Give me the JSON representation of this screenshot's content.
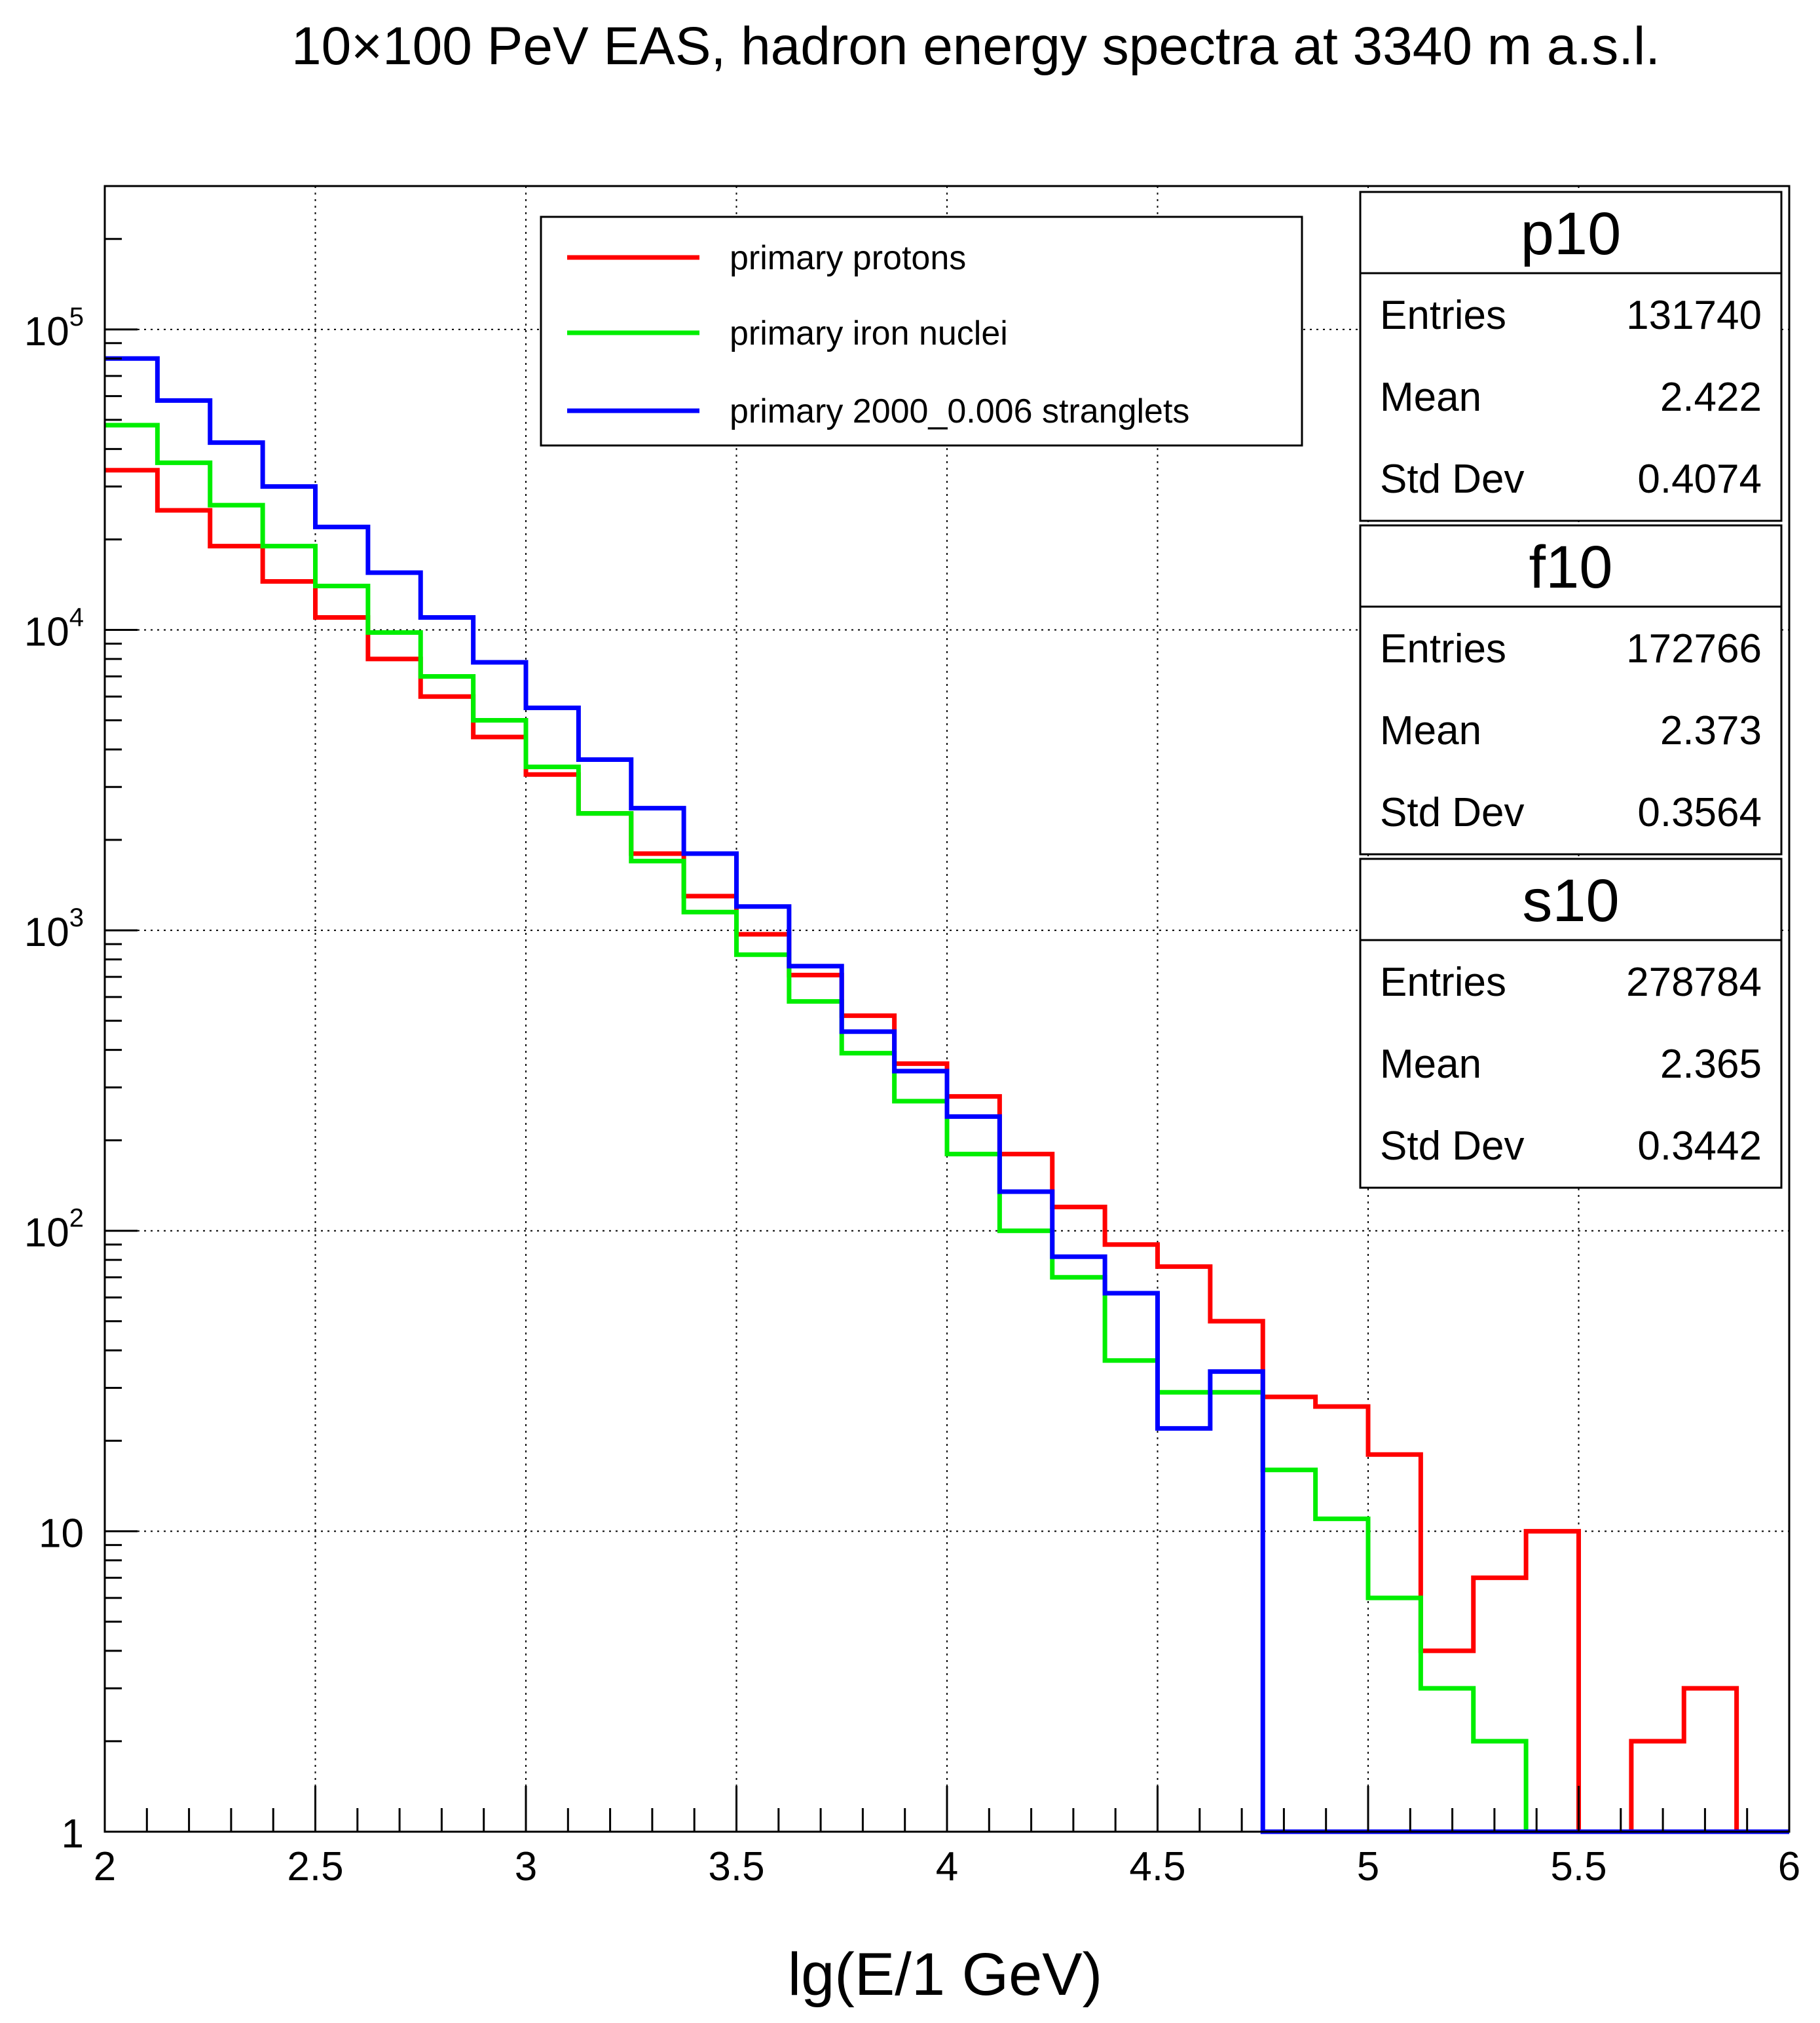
{
  "chart_data": {
    "type": "histogram-step",
    "title": "10×100 PeV EAS, hadron energy spectra at 3340 m a.s.l.",
    "xlabel": "lg(E/1 GeV)",
    "ylabel": "",
    "xlim": [
      2,
      6
    ],
    "ylim": [
      1,
      300000
    ],
    "yscale": "log",
    "grid": true,
    "x_ticks": [
      "2",
      "2.5",
      "3",
      "3.5",
      "4",
      "4.5",
      "5",
      "5.5",
      "6"
    ],
    "y_ticks": [
      {
        "value": 1,
        "base": "1",
        "exp": ""
      },
      {
        "value": 10,
        "base": "10",
        "exp": ""
      },
      {
        "value": 100,
        "base": "10",
        "exp": "2"
      },
      {
        "value": 1000,
        "base": "10",
        "exp": "3"
      },
      {
        "value": 10000,
        "base": "10",
        "exp": "4"
      },
      {
        "value": 100000,
        "base": "10",
        "exp": "5"
      }
    ],
    "bin_edges": [
      2.0,
      2.125,
      2.25,
      2.375,
      2.5,
      2.625,
      2.75,
      2.875,
      3.0,
      3.125,
      3.25,
      3.375,
      3.5,
      3.625,
      3.75,
      3.875,
      4.0,
      4.125,
      4.25,
      4.375,
      4.5,
      4.625,
      4.75,
      4.875,
      5.0,
      5.125,
      5.25,
      5.375,
      5.5,
      5.625,
      5.75,
      5.875,
      6.0
    ],
    "series": [
      {
        "name": "primary protons",
        "color": "#ff0000",
        "values": [
          34000,
          25000,
          19000,
          14500,
          11000,
          8000,
          6000,
          4400,
          3300,
          2450,
          1800,
          1300,
          970,
          710,
          520,
          360,
          280,
          180,
          120,
          90,
          76,
          50,
          28,
          26,
          18,
          4,
          7,
          10,
          0,
          2,
          3,
          0
        ]
      },
      {
        "name": "primary iron nuclei",
        "color": "#00ee00",
        "values": [
          48000,
          36000,
          26000,
          19000,
          14000,
          9800,
          7000,
          5000,
          3500,
          2450,
          1700,
          1150,
          830,
          580,
          390,
          270,
          180,
          100,
          70,
          37,
          29,
          29,
          16,
          11,
          6,
          3,
          2,
          0,
          0,
          0,
          0,
          0
        ]
      },
      {
        "name": "primary 2000_0.006 stranglets",
        "color": "#0000ff",
        "values": [
          80000,
          58000,
          42000,
          30000,
          22000,
          15500,
          11000,
          7800,
          5500,
          3700,
          2550,
          1800,
          1200,
          760,
          460,
          340,
          240,
          135,
          82,
          62,
          22,
          34,
          0,
          0,
          0,
          0,
          0,
          0,
          0,
          0,
          0,
          0
        ]
      }
    ],
    "stats": [
      {
        "name": "p10",
        "entries_label": "Entries",
        "entries": "131740",
        "mean_label": "Mean",
        "mean": "2.422",
        "std_label": "Std Dev",
        "std": "0.4074"
      },
      {
        "name": "f10",
        "entries_label": "Entries",
        "entries": "172766",
        "mean_label": "Mean",
        "mean": "2.373",
        "std_label": "Std Dev",
        "std": "0.3564"
      },
      {
        "name": "s10",
        "entries_label": "Entries",
        "entries": "278784",
        "mean_label": "Mean",
        "mean": "2.365",
        "std_label": "Std Dev",
        "std": "0.3442"
      }
    ],
    "legend_position": "top-center"
  }
}
